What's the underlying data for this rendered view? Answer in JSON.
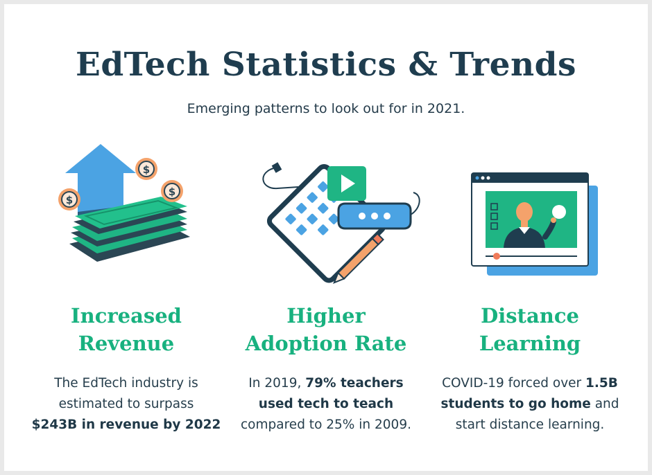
{
  "title": "EdTech Statistics & Trends",
  "subtitle": "Emerging patterns to look out for in 2021.",
  "columns": [
    {
      "icon": "money-growth-icon",
      "heading_line1": "Increased",
      "heading_line2": "Revenue",
      "desc_line1": "The EdTech industry is",
      "desc_line2": "estimated to surpass",
      "desc_line3_bold": "$243B in revenue by 2022"
    },
    {
      "icon": "tablet-learning-icon",
      "heading_line1": "Higher",
      "heading_line2": "Adoption Rate",
      "desc_line1_plain": "In 2019, ",
      "desc_line1_bold": "79% teachers",
      "desc_line2_bold": "used tech to teach",
      "desc_line3": "compared to 25% in 2009."
    },
    {
      "icon": "video-lesson-icon",
      "heading_line1": "Distance",
      "heading_line2": "Learning",
      "desc_line1_plain": "COVID-19 forced over ",
      "desc_line1_bold": "1.5B",
      "desc_line2_bold": "students to go home",
      "desc_line2_plain": " and",
      "desc_line3": "start distance learning."
    }
  ],
  "colors": {
    "navy": "#1f3d4f",
    "green": "#18b17f",
    "blue": "#4ba3e3",
    "orange": "#f4a26b"
  }
}
